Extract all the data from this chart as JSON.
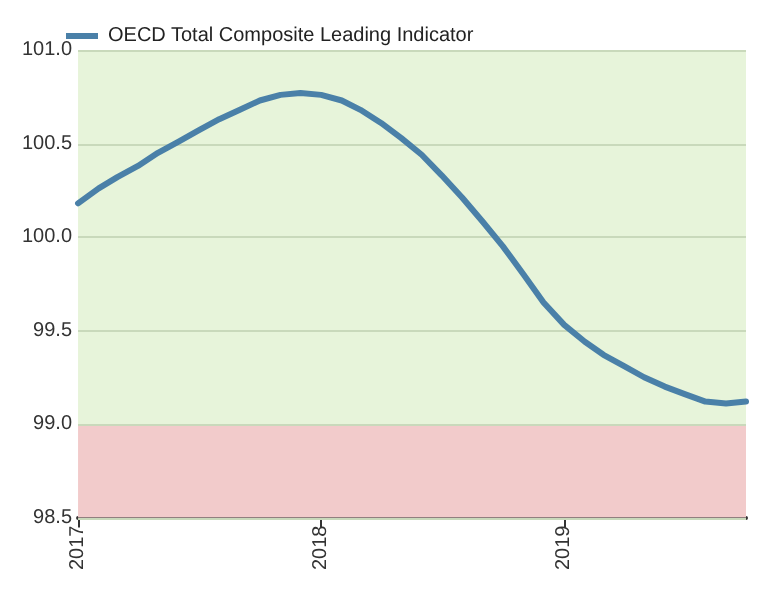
{
  "chart_data": {
    "type": "line",
    "x": [
      "2017-01",
      "2017-02",
      "2017-03",
      "2017-04",
      "2017-05",
      "2017-06",
      "2017-07",
      "2017-08",
      "2017-09",
      "2017-10",
      "2017-11",
      "2017-12",
      "2018-01",
      "2018-02",
      "2018-03",
      "2018-04",
      "2018-05",
      "2018-06",
      "2018-07",
      "2018-08",
      "2018-09",
      "2018-10",
      "2018-11",
      "2018-12",
      "2019-01",
      "2019-02",
      "2019-03",
      "2019-04",
      "2019-05",
      "2019-06",
      "2019-07",
      "2019-08",
      "2019-09",
      "2019-10"
    ],
    "series": [
      {
        "name": "OECD Total Composite Leading Indicator",
        "color": "#4a80a8",
        "values": [
          100.18,
          100.26,
          100.32,
          100.38,
          100.45,
          100.51,
          100.57,
          100.63,
          100.68,
          100.73,
          100.76,
          100.77,
          100.76,
          100.73,
          100.68,
          100.61,
          100.53,
          100.44,
          100.33,
          100.21,
          100.08,
          99.95,
          99.8,
          99.65,
          99.53,
          99.44,
          99.37,
          99.31,
          99.25,
          99.2,
          99.16,
          99.12,
          99.11,
          99.12
        ]
      }
    ],
    "xlim": [
      "2017-01",
      "2019-10"
    ],
    "xticks": [
      {
        "value": "2017-01",
        "label": "2017"
      },
      {
        "value": "2018-01",
        "label": "2018"
      },
      {
        "value": "2019-01",
        "label": "2019"
      }
    ],
    "ylim": [
      98.5,
      101.0
    ],
    "yticks": [
      {
        "value": 98.5,
        "label": "98.5"
      },
      {
        "value": 99.0,
        "label": "99.0"
      },
      {
        "value": 99.5,
        "label": "99.5"
      },
      {
        "value": 100.0,
        "label": "100.0"
      },
      {
        "value": 100.5,
        "label": "100.5"
      },
      {
        "value": 101.0,
        "label": "101.0"
      }
    ],
    "bands": [
      {
        "axis": "y",
        "from": 99.0,
        "to": 101.0,
        "color": "#e7f4da"
      },
      {
        "axis": "y",
        "from": 98.5,
        "to": 99.0,
        "color": "#f2cbcb"
      }
    ],
    "grid": "y",
    "legend": "top left",
    "marker": "none",
    "line_style": "solid"
  }
}
